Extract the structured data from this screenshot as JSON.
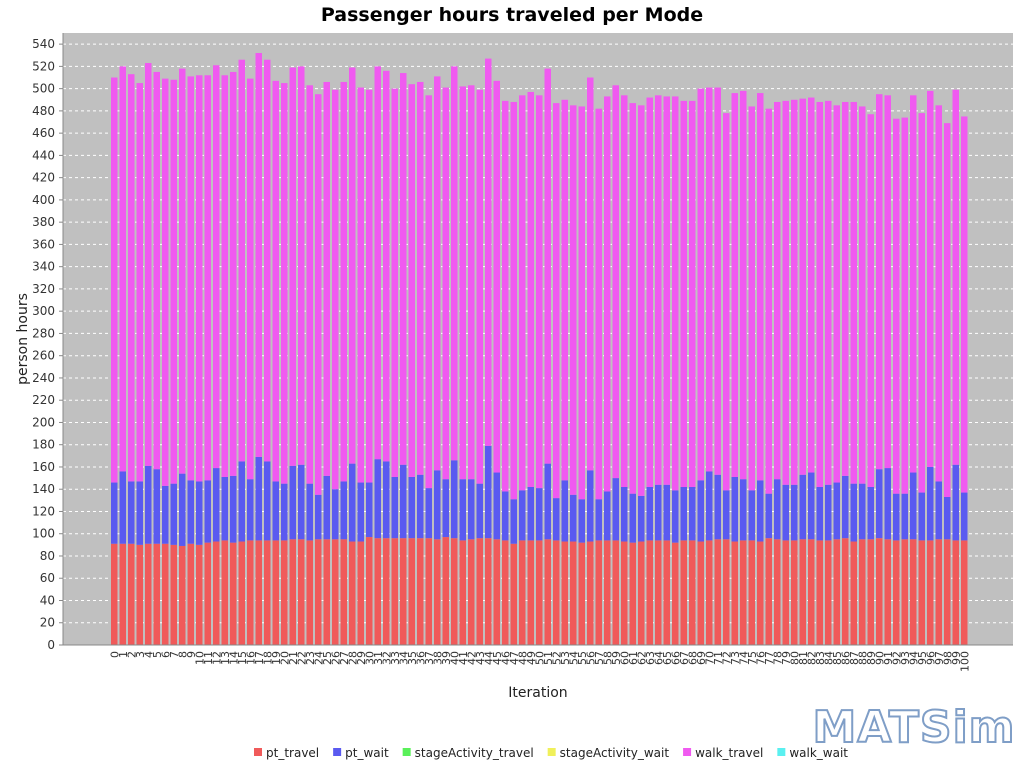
{
  "logo_text": "MATSim",
  "chart_data": {
    "type": "bar",
    "stacked": true,
    "title": "Passenger hours traveled per Mode",
    "xlabel": "Iteration",
    "ylabel": "person hours",
    "ylim": [
      0,
      550
    ],
    "yticks": [
      0,
      20,
      40,
      60,
      80,
      100,
      120,
      140,
      160,
      180,
      200,
      220,
      240,
      260,
      280,
      300,
      320,
      340,
      360,
      380,
      400,
      420,
      440,
      460,
      480,
      500,
      520,
      540
    ],
    "grid": true,
    "legend_position": "bottom",
    "plot_background": "#c0c0c0",
    "categories": [
      "0",
      "1",
      "2",
      "3",
      "4",
      "5",
      "6",
      "7",
      "8",
      "9",
      "10",
      "11",
      "12",
      "13",
      "14",
      "15",
      "16",
      "17",
      "18",
      "19",
      "20",
      "21",
      "22",
      "23",
      "24",
      "25",
      "26",
      "27",
      "28",
      "29",
      "30",
      "31",
      "32",
      "33",
      "34",
      "35",
      "36",
      "37",
      "38",
      "39",
      "40",
      "41",
      "42",
      "43",
      "44",
      "45",
      "46",
      "47",
      "48",
      "49",
      "50",
      "51",
      "52",
      "53",
      "54",
      "55",
      "56",
      "57",
      "58",
      "59",
      "60",
      "61",
      "62",
      "63",
      "64",
      "65",
      "66",
      "67",
      "68",
      "69",
      "70",
      "71",
      "72",
      "73",
      "74",
      "75",
      "76",
      "77",
      "78",
      "79",
      "80",
      "81",
      "82",
      "83",
      "84",
      "85",
      "86",
      "87",
      "88",
      "89",
      "90",
      "91",
      "92",
      "93",
      "94",
      "95",
      "96",
      "97",
      "98",
      "99",
      "100"
    ],
    "series": [
      {
        "name": "pt_travel",
        "color": "#f05a5a",
        "values": [
          91,
          91,
          91,
          90,
          91,
          91,
          91,
          90,
          89,
          91,
          90,
          92,
          93,
          94,
          92,
          93,
          94,
          94,
          94,
          94,
          94,
          95,
          95,
          94,
          95,
          95,
          95,
          95,
          93,
          93,
          97,
          96,
          96,
          96,
          96,
          96,
          96,
          96,
          95,
          97,
          96,
          94,
          95,
          96,
          96,
          95,
          94,
          91,
          94,
          94,
          94,
          95,
          94,
          93,
          93,
          92,
          93,
          94,
          94,
          94,
          93,
          92,
          93,
          94,
          94,
          94,
          92,
          94,
          94,
          93,
          94,
          95,
          95,
          93,
          94,
          94,
          93,
          96,
          95,
          94,
          94,
          95,
          95,
          94,
          94,
          95,
          96,
          93,
          95,
          95,
          96,
          95,
          94,
          95,
          95,
          94,
          94,
          95,
          95,
          94,
          94
        ]
      },
      {
        "name": "pt_wait",
        "color": "#5a5af0",
        "values": [
          55,
          65,
          56,
          57,
          70,
          67,
          52,
          55,
          65,
          57,
          57,
          56,
          66,
          57,
          60,
          72,
          55,
          75,
          71,
          53,
          51,
          66,
          67,
          51,
          40,
          57,
          45,
          52,
          70,
          53,
          49,
          71,
          69,
          55,
          66,
          55,
          57,
          45,
          62,
          52,
          70,
          55,
          54,
          49,
          83,
          60,
          44,
          40,
          45,
          48,
          47,
          68,
          38,
          55,
          42,
          39,
          64,
          37,
          44,
          56,
          49,
          44,
          41,
          48,
          50,
          50,
          47,
          48,
          48,
          55,
          62,
          58,
          44,
          58,
          55,
          45,
          55,
          40,
          54,
          50,
          50,
          58,
          60,
          48,
          50,
          51,
          56,
          52,
          50,
          47,
          62,
          64,
          42,
          41,
          60,
          43,
          66,
          52,
          38,
          68,
          43
        ]
      },
      {
        "name": "stageActivity_travel",
        "color": "#5af05a",
        "values": [
          0,
          0,
          0,
          0,
          0,
          0,
          0,
          0,
          0,
          0,
          0,
          0,
          0,
          0,
          0,
          0,
          0,
          0,
          0,
          0,
          0,
          0,
          0,
          0,
          0,
          0,
          0,
          0,
          0,
          0,
          0,
          0,
          0,
          0,
          0,
          0,
          0,
          0,
          0,
          0,
          0,
          0,
          0,
          0,
          0,
          0,
          0,
          0,
          0,
          0,
          0,
          0,
          0,
          0,
          0,
          0,
          0,
          0,
          0,
          0,
          0,
          0,
          0,
          0,
          0,
          0,
          0,
          0,
          0,
          0,
          0,
          0,
          0,
          0,
          0,
          0,
          0,
          0,
          0,
          0,
          0,
          0,
          0,
          0,
          0,
          0,
          0,
          0,
          0,
          0,
          0,
          0,
          0,
          0,
          0,
          0,
          0,
          0,
          0,
          0,
          0
        ]
      },
      {
        "name": "stageActivity_wait",
        "color": "#f0f05a",
        "values": [
          0,
          0,
          0,
          0,
          0,
          0,
          0,
          0,
          0,
          0,
          0,
          0,
          0,
          0,
          0,
          0,
          0,
          0,
          0,
          0,
          0,
          0,
          0,
          0,
          0,
          0,
          0,
          0,
          0,
          0,
          0,
          0,
          0,
          0,
          0,
          0,
          0,
          0,
          0,
          0,
          0,
          0,
          0,
          0,
          0,
          0,
          0,
          0,
          0,
          0,
          0,
          0,
          0,
          0,
          0,
          0,
          0,
          0,
          0,
          0,
          0,
          0,
          0,
          0,
          0,
          0,
          0,
          0,
          0,
          0,
          0,
          0,
          0,
          0,
          0,
          0,
          0,
          0,
          0,
          0,
          0,
          0,
          0,
          0,
          0,
          0,
          0,
          0,
          0,
          0,
          0,
          0,
          0,
          0,
          0,
          0,
          0,
          0,
          0,
          0,
          0
        ]
      },
      {
        "name": "walk_travel",
        "color": "#f05af0",
        "values": [
          364,
          364,
          366,
          358,
          362,
          357,
          366,
          363,
          364,
          363,
          365,
          364,
          362,
          361,
          363,
          361,
          360,
          363,
          361,
          360,
          360,
          358,
          358,
          358,
          360,
          354,
          359,
          359,
          356,
          355,
          353,
          353,
          351,
          349,
          352,
          353,
          353,
          353,
          354,
          352,
          354,
          353,
          354,
          354,
          348,
          352,
          351,
          357,
          355,
          355,
          353,
          355,
          355,
          342,
          350,
          353,
          353,
          351,
          355,
          353,
          352,
          351,
          351,
          350,
          350,
          349,
          354,
          347,
          347,
          352,
          345,
          348,
          339,
          345,
          349,
          345,
          348,
          346,
          339,
          345,
          346,
          338,
          337,
          346,
          345,
          339,
          336,
          343,
          339,
          335,
          337,
          335,
          337,
          338,
          339,
          341,
          338,
          338,
          336,
          337,
          338
        ]
      },
      {
        "name": "walk_wait",
        "color": "#5af0f0",
        "values": [
          0,
          0,
          0,
          0,
          0,
          0,
          0,
          0,
          0,
          0,
          0,
          0,
          0,
          0,
          0,
          0,
          0,
          0,
          0,
          0,
          0,
          0,
          0,
          0,
          0,
          0,
          0,
          0,
          0,
          0,
          0,
          0,
          0,
          0,
          0,
          0,
          0,
          0,
          0,
          0,
          0,
          0,
          0,
          0,
          0,
          0,
          0,
          0,
          0,
          0,
          0,
          0,
          0,
          0,
          0,
          0,
          0,
          0,
          0,
          0,
          0,
          0,
          0,
          0,
          0,
          0,
          0,
          0,
          0,
          0,
          0,
          0,
          0,
          0,
          0,
          0,
          0,
          0,
          0,
          0,
          0,
          0,
          0,
          0,
          0,
          0,
          0,
          0,
          0,
          0,
          0,
          0,
          0,
          0,
          0,
          0,
          0,
          0,
          0,
          0,
          0
        ]
      }
    ]
  }
}
